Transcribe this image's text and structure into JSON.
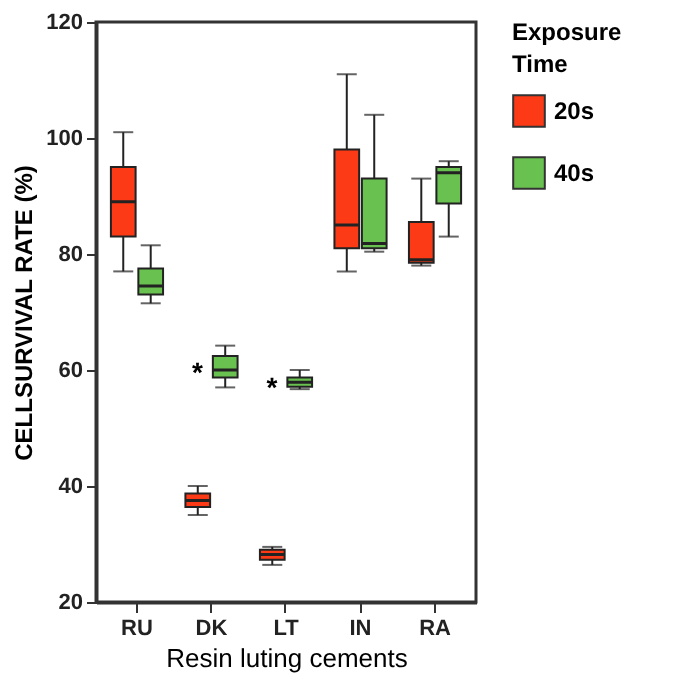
{
  "chart_data": {
    "type": "box",
    "xlabel": "Resin luting cements",
    "ylabel": "CELLSURVIVAL RATE (%)",
    "legend_title": "Exposure Time",
    "categories": [
      "RU",
      "DK",
      "LT",
      "IN",
      "RA"
    ],
    "ylim": [
      20,
      120
    ],
    "yticks": [
      20,
      40,
      60,
      80,
      100,
      120
    ],
    "grid": false,
    "legend": "right",
    "series": [
      {
        "name": "20s",
        "color": "#fc3b16",
        "boxes": [
          {
            "low": 77,
            "q1": 83,
            "median": 89,
            "q3": 95,
            "high": 101
          },
          {
            "low": 35,
            "q1": 36.4,
            "median": 37.5,
            "q3": 38.7,
            "high": 40
          },
          {
            "low": 26.4,
            "q1": 27.3,
            "median": 28.2,
            "q3": 29,
            "high": 29.5
          },
          {
            "low": 77,
            "q1": 81,
            "median": 85,
            "q3": 98,
            "high": 111
          },
          {
            "low": 78,
            "q1": 78.5,
            "median": 79,
            "q3": 85.5,
            "high": 93
          }
        ]
      },
      {
        "name": "40s",
        "color": "#69c150",
        "boxes": [
          {
            "low": 71.5,
            "q1": 73,
            "median": 74.5,
            "q3": 77.5,
            "high": 81.5
          },
          {
            "low": 57,
            "q1": 58.7,
            "median": 60,
            "q3": 62.4,
            "high": 64.2
          },
          {
            "low": 56.7,
            "q1": 57.1,
            "median": 57.9,
            "q3": 58.7,
            "high": 60
          },
          {
            "low": 80.4,
            "q1": 81,
            "median": 81.8,
            "q3": 93,
            "high": 104
          },
          {
            "low": 83,
            "q1": 88.7,
            "median": 94,
            "q3": 95,
            "high": 96
          }
        ]
      }
    ],
    "annotations": [
      {
        "text": "*",
        "x": "DK",
        "y": 60
      },
      {
        "text": "*",
        "x": "LT",
        "y": 57.5
      }
    ]
  }
}
